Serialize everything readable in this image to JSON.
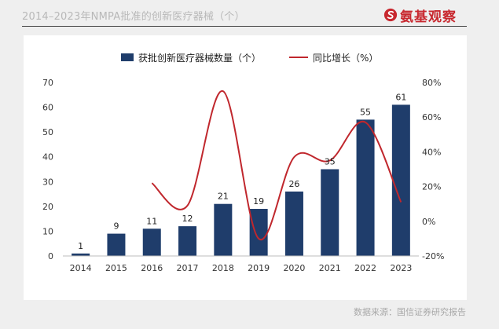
{
  "header": {
    "title": "2014–2023年NMPA批准的创新医疗器械（个）",
    "brand_name": "氨基观察",
    "brand_color": "#c8282f",
    "brand_icon": "brand-logo-icon"
  },
  "footer": {
    "source": "数据来源：国信证券研究报告"
  },
  "chart_data": {
    "type": "bar",
    "categories": [
      "2014",
      "2015",
      "2016",
      "2017",
      "2018",
      "2019",
      "2020",
      "2021",
      "2022",
      "2023"
    ],
    "series": [
      {
        "name": "获批创新医疗器械数量（个）",
        "type": "bar",
        "axis": "left",
        "color": "#1f3d6b",
        "values": [
          1,
          9,
          11,
          12,
          21,
          19,
          26,
          35,
          55,
          61
        ]
      },
      {
        "name": "同比增长（%）",
        "type": "line",
        "axis": "right",
        "color": "#c0272d",
        "values": [
          null,
          null,
          22,
          9,
          75,
          -10,
          37,
          35,
          57,
          11
        ]
      }
    ],
    "ylim": [
      0,
      70
    ],
    "yticks": [
      0,
      10,
      20,
      30,
      40,
      50,
      60,
      70
    ],
    "y2lim": [
      -20,
      80
    ],
    "y2ticks": [
      -20,
      0,
      20,
      40,
      60,
      80
    ],
    "y2tick_labels": [
      "-20%",
      "0%",
      "20%",
      "40%",
      "60%",
      "80%"
    ],
    "legend": "top",
    "grid": false,
    "data_labels": true
  }
}
